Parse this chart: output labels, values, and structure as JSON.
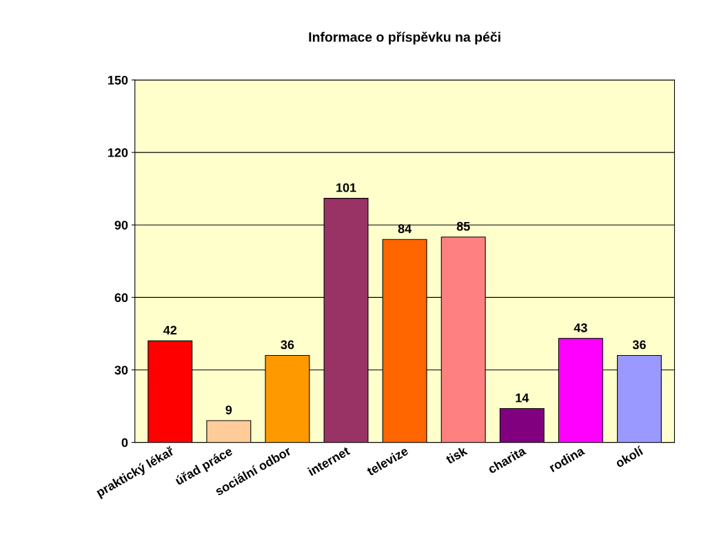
{
  "chart_data": {
    "type": "bar",
    "title": "Informace o příspěvku na péči",
    "categories": [
      "praktický lékař",
      "úřad práce",
      "sociální odbor",
      "internet",
      "televize",
      "tisk",
      "charita",
      "rodina",
      "okolí"
    ],
    "values": [
      42,
      9,
      36,
      101,
      84,
      85,
      14,
      43,
      36
    ],
    "colors": [
      "#ff0000",
      "#ffcc99",
      "#ff9900",
      "#993366",
      "#ff6600",
      "#ff8080",
      "#800080",
      "#ff00ff",
      "#9999ff"
    ],
    "ylim": [
      0,
      150
    ],
    "yticks": [
      0,
      30,
      60,
      90,
      120,
      150
    ],
    "grid": "y",
    "data_labels": true
  }
}
